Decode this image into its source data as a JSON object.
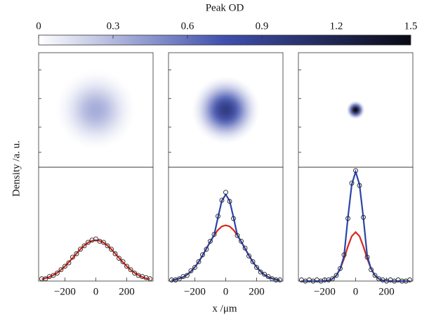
{
  "chart_data": {
    "type": "profiles",
    "colorbar": {
      "title": "Peak OD",
      "lim": [
        0,
        1.5
      ],
      "ticks": [
        0,
        0.3,
        0.6,
        0.9,
        1.2,
        1.5
      ],
      "colors": [
        "#ffffff",
        "#3f4fad",
        "#0a0a14"
      ]
    },
    "ylabel": "Density /a. u.",
    "xlabel": "x /μm",
    "x": [
      -350,
      -325,
      -300,
      -275,
      -250,
      -225,
      -200,
      -175,
      -150,
      -125,
      -100,
      -75,
      -50,
      -25,
      0,
      25,
      50,
      75,
      100,
      125,
      150,
      175,
      200,
      225,
      250,
      275,
      300,
      325,
      350
    ],
    "xlim": [
      -370,
      370
    ],
    "xticks": [
      {
        "value": -200,
        "label": "−200"
      },
      0,
      200
    ],
    "ylim": [
      0,
      1
    ],
    "panels": [
      {
        "image_peak_od": 0.35,
        "image_radius": 260,
        "series": [
          {
            "style": "line",
            "color": "#d9261c",
            "values": [
              0.016,
              0.024,
              0.036,
              0.052,
              0.073,
              0.099,
              0.13,
              0.165,
              0.203,
              0.242,
              0.279,
              0.312,
              0.338,
              0.354,
              0.36,
              0.354,
              0.338,
              0.312,
              0.279,
              0.242,
              0.203,
              0.165,
              0.13,
              0.099,
              0.073,
              0.052,
              0.036,
              0.024,
              0.016
            ]
          },
          {
            "style": "markers",
            "color": "#222222",
            "values": [
              0.02,
              0.02,
              0.04,
              0.05,
              0.07,
              0.1,
              0.13,
              0.16,
              0.21,
              0.24,
              0.28,
              0.31,
              0.34,
              0.36,
              0.37,
              0.35,
              0.34,
              0.31,
              0.28,
              0.24,
              0.2,
              0.17,
              0.13,
              0.1,
              0.07,
              0.05,
              0.04,
              0.03,
              0.02
            ]
          }
        ]
      },
      {
        "image_peak_od": 0.95,
        "image_radius": 220,
        "series": [
          {
            "style": "line",
            "color": "#d9261c",
            "values": [
              0.007,
              0.013,
              0.022,
              0.035,
              0.056,
              0.084,
              0.122,
              0.169,
              0.224,
              0.285,
              0.346,
              0.403,
              0.449,
              0.48,
              0.49,
              0.48,
              0.449,
              0.403,
              0.346,
              0.285,
              0.224,
              0.169,
              0.122,
              0.084,
              0.056,
              0.035,
              0.022,
              0.013,
              0.007
            ]
          },
          {
            "style": "line",
            "color": "#2a45a8",
            "values": [
              0.007,
              0.013,
              0.022,
              0.035,
              0.056,
              0.084,
              0.122,
              0.169,
              0.224,
              0.285,
              0.346,
              0.403,
              0.561,
              0.706,
              0.76,
              0.706,
              0.561,
              0.403,
              0.346,
              0.285,
              0.224,
              0.169,
              0.122,
              0.084,
              0.056,
              0.035,
              0.022,
              0.013,
              0.007
            ]
          },
          {
            "style": "markers",
            "color": "#222222",
            "values": [
              0.01,
              0.01,
              0.02,
              0.04,
              0.05,
              0.09,
              0.12,
              0.17,
              0.23,
              0.28,
              0.35,
              0.41,
              0.57,
              0.71,
              0.78,
              0.7,
              0.55,
              0.4,
              0.35,
              0.29,
              0.22,
              0.17,
              0.12,
              0.08,
              0.06,
              0.04,
              0.02,
              0.01,
              0.01
            ]
          }
        ]
      },
      {
        "image_peak_od": 1.5,
        "image_radius": 60,
        "series": [
          {
            "style": "line",
            "color": "#d9261c",
            "values": [
              0,
              0,
              0,
              0,
              0,
              0,
              0.002,
              0.006,
              0.019,
              0.049,
              0.107,
              0.197,
              0.304,
              0.394,
              0.43,
              0.394,
              0.304,
              0.197,
              0.107,
              0.049,
              0.019,
              0.006,
              0.002,
              0,
              0,
              0,
              0,
              0,
              0
            ]
          },
          {
            "style": "line",
            "color": "#2a45a8",
            "values": [
              0,
              0,
              0,
              0,
              0,
              0,
              0.002,
              0.006,
              0.019,
              0.049,
              0.107,
              0.219,
              0.556,
              0.848,
              0.96,
              0.848,
              0.556,
              0.219,
              0.107,
              0.049,
              0.019,
              0.006,
              0.002,
              0,
              0,
              0,
              0,
              0,
              0
            ]
          },
          {
            "style": "markers",
            "color": "#222222",
            "values": [
              0.01,
              0,
              0.01,
              0,
              0.01,
              0,
              0.01,
              0.01,
              0.02,
              0.05,
              0.11,
              0.23,
              0.55,
              0.86,
              0.97,
              0.84,
              0.56,
              0.21,
              0.1,
              0.05,
              0.02,
              0.01,
              0,
              0.01,
              0,
              0.01,
              0,
              0,
              0.01
            ]
          }
        ]
      }
    ]
  }
}
